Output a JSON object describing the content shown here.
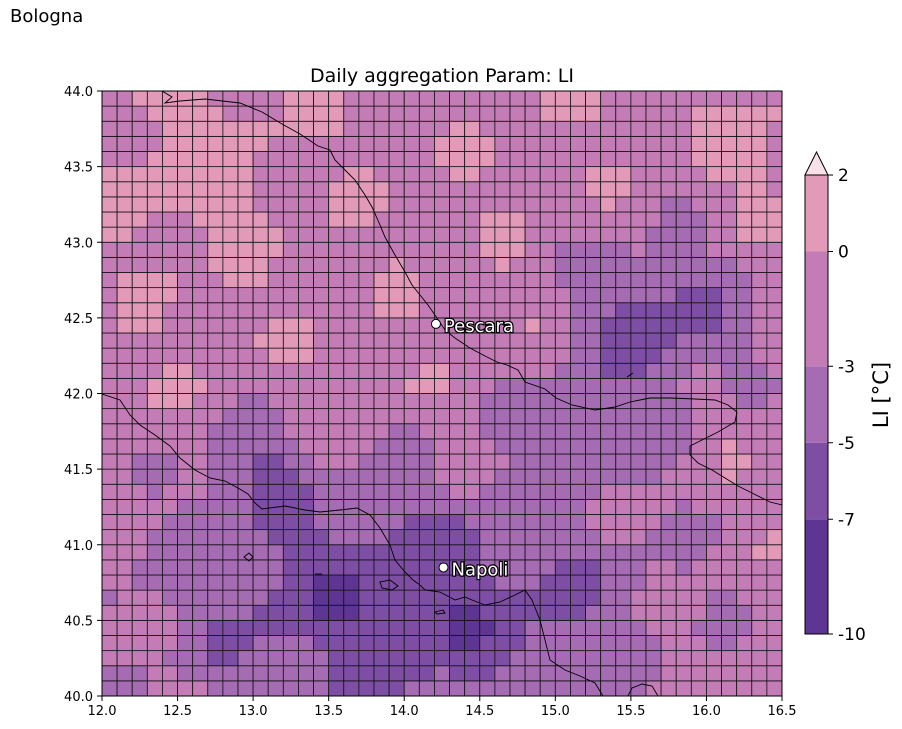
{
  "corner_label": "Bologna",
  "title": "Daily aggregation Param: LI",
  "x_ticks": [
    "12.0",
    "12.5",
    "13.0",
    "13.5",
    "14.0",
    "14.5",
    "15.0",
    "15.5",
    "16.0",
    "16.5"
  ],
  "y_ticks": [
    "44.0",
    "43.5",
    "43.0",
    "42.5",
    "42.0",
    "41.5",
    "41.0",
    "40.5",
    "40.0"
  ],
  "colorbar": {
    "label": "LI [°C]",
    "ticks": [
      "2",
      "0",
      "-3",
      "-5",
      "-7",
      "-10"
    ],
    "colors": [
      "#5e3592",
      "#7e4ea5",
      "#a56bb3",
      "#c47cb6",
      "#e39ab8"
    ],
    "extend_color": "#f8e2e8"
  },
  "cities": [
    {
      "name": "Pescara",
      "lon": 14.21,
      "lat": 42.46
    },
    {
      "name": "Napoli",
      "lon": 14.26,
      "lat": 40.85
    }
  ],
  "chart_data": {
    "type": "heatmap",
    "title": "Daily aggregation Param: LI",
    "xlim": [
      12.0,
      16.5
    ],
    "ylim": [
      40.0,
      44.0
    ],
    "grid": "0.1 degree cells, dark edges",
    "colorbar_label": "LI [°C]",
    "levels": [
      -10,
      -7,
      -5,
      -3,
      0,
      2
    ],
    "extend": "max",
    "field_description_by_region": [
      {
        "region": "north-west (12.0-13.7, 42.3-44.0)",
        "li_range": [
          -3,
          2
        ]
      },
      {
        "region": "north-east (14.5-16.5, 42.8-44.0)",
        "li_range": [
          -5,
          0
        ]
      },
      {
        "region": "east-central (15.2-16.2, 42.0-43.1)",
        "li_range": [
          -10,
          -5
        ]
      },
      {
        "region": "south / Tyrrhenian (12.3-15.5, 40.0-41.7)",
        "li_range": [
          -10,
          -5
        ]
      },
      {
        "region": "south-east (15.5-16.5, 40.3-41.5)",
        "li_range": [
          -7,
          -3
        ]
      }
    ]
  }
}
